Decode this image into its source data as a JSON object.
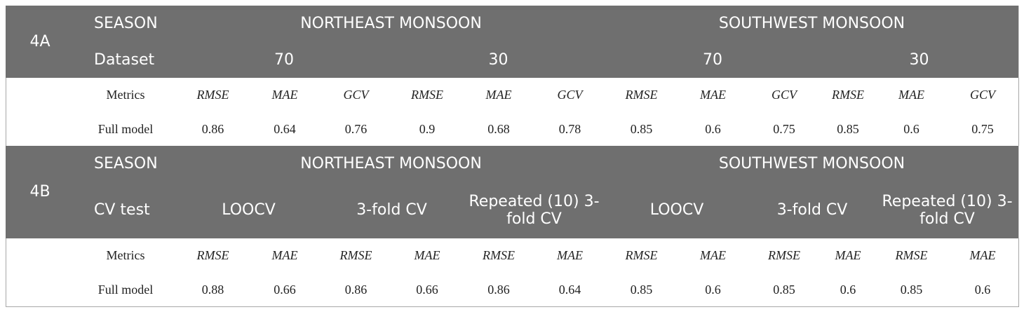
{
  "sections": [
    {
      "label": "4A",
      "season_label": "SEASON",
      "seasons": [
        "NORTHEAST MONSOON",
        "SOUTHWEST MONSOON"
      ],
      "row2_label": "Dataset",
      "groups": [
        "70",
        "30",
        "70",
        "30"
      ],
      "metrics_label": "Metrics",
      "metrics": [
        "RMSE",
        "MAE",
        "GCV",
        "RMSE",
        "MAE",
        "GCV",
        "RMSE",
        "MAE",
        "GCV",
        "RMSE",
        "MAE",
        "GCV"
      ],
      "model_label": "Full model",
      "values": [
        0.86,
        0.64,
        0.76,
        0.9,
        0.68,
        0.78,
        0.85,
        0.6,
        0.75,
        0.85,
        0.6,
        0.75
      ]
    },
    {
      "label": "4B",
      "season_label": "SEASON",
      "seasons": [
        "NORTHEAST MONSOON",
        "SOUTHWEST MONSOON"
      ],
      "row2_label": "CV test",
      "groups": [
        "LOOCV",
        "3-fold CV",
        "Repeated (10) 3-fold CV",
        "LOOCV",
        "3-fold CV",
        "Repeated (10) 3-fold CV"
      ],
      "metrics_label": "Metrics",
      "metrics": [
        "RMSE",
        "MAE",
        "RMSE",
        "MAE",
        "RMSE",
        "MAE",
        "RMSE",
        "MAE",
        "RMSE",
        "MAE",
        "RMSE",
        "MAE"
      ],
      "model_label": "Full model",
      "values": [
        0.88,
        0.66,
        0.86,
        0.66,
        0.86,
        0.64,
        0.85,
        0.6,
        0.85,
        0.6,
        0.85,
        0.6
      ]
    }
  ]
}
